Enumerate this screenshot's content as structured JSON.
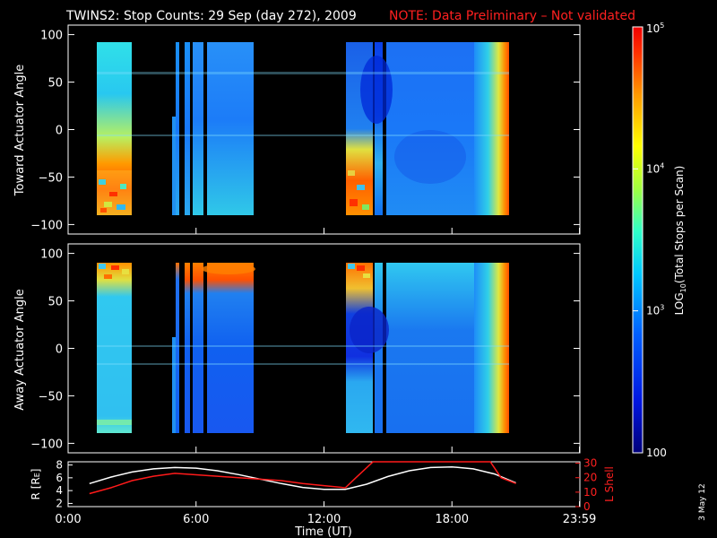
{
  "title": {
    "main": "TWINS2: Stop Counts: 29 Sep (day 272), 2009",
    "note": "NOTE: Data Preliminary – Not validated",
    "note_color": "#ff2020"
  },
  "datestamp": "3 May 12",
  "colorbar": {
    "label": "LOG",
    "label_sub": "10",
    "label_rest": "(Total Stops per Scan)",
    "ticks": [
      {
        "base": "10",
        "exp": "5",
        "value": 100000
      },
      {
        "base": "10",
        "exp": "4",
        "value": 10000
      },
      {
        "base": "10",
        "exp": "3",
        "value": 1000
      },
      {
        "base": "100",
        "exp": "",
        "value": 100
      }
    ],
    "range": [
      100,
      100000
    ]
  },
  "chart_data": [
    {
      "type": "heatmap",
      "name": "toward",
      "ylabel": "Toward Actuator Angle",
      "ylim": [
        -110,
        110
      ],
      "xlim": [
        0,
        24
      ],
      "yticks": [
        "100",
        "50",
        "0",
        "−50",
        "−100"
      ],
      "ytick_values": [
        100,
        50,
        0,
        -50,
        -100
      ],
      "angle_range": [
        -88,
        90
      ],
      "scan_blocks": [
        [
          1.2,
          2.6
        ],
        [
          4.9,
          5.3
        ],
        [
          5.5,
          6.0
        ],
        [
          6.1,
          8.8
        ],
        [
          13.0,
          21.0
        ]
      ],
      "note": "Log10 stop counts ~10^2.5-10^4; enhanced (red) below -30 deg near 1-2.6h and 13-14h"
    },
    {
      "type": "heatmap",
      "name": "away",
      "ylabel": "Away Actuator Angle",
      "ylim": [
        -110,
        110
      ],
      "xlim": [
        0,
        24
      ],
      "yticks": [
        "100",
        "50",
        "0",
        "−50",
        "−100"
      ],
      "ytick_values": [
        100,
        50,
        0,
        -50,
        -100
      ],
      "angle_range": [
        -88,
        90
      ],
      "scan_blocks": [
        [
          1.2,
          2.6
        ],
        [
          4.9,
          5.3
        ],
        [
          5.5,
          6.0
        ],
        [
          6.1,
          8.8
        ],
        [
          13.0,
          21.0
        ]
      ],
      "note": "Enhanced (red/orange) near +80 deg; low (blue) 30-60 deg"
    },
    {
      "type": "line",
      "name": "ephemeris",
      "ylabel_left": "R [R",
      "ylabel_left_sub": "E",
      "ylabel_left_end": "]",
      "ylabel_right": "L Shell",
      "xlabel": "Time (UT)",
      "xticks": [
        "0:00",
        "6:00",
        "12:00",
        "18:00",
        "23:59"
      ],
      "xtick_values": [
        0,
        6,
        12,
        18,
        23.98
      ],
      "left_yticks": [
        "8",
        "6",
        "4",
        "2"
      ],
      "left_ytick_values": [
        8,
        6,
        4,
        2
      ],
      "right_yticks": [
        "30",
        "20",
        "10",
        "0"
      ],
      "right_ytick_values": [
        30,
        20,
        10,
        0
      ],
      "left_ylim": [
        1.5,
        8.5
      ],
      "right_ylim": [
        0,
        31
      ],
      "xlim": [
        0,
        24
      ],
      "series": [
        {
          "name": "R",
          "axis": "left",
          "color": "#ffffff",
          "x": [
            1,
            2,
            3,
            4,
            5,
            6,
            7,
            8,
            9,
            10,
            11,
            12,
            13,
            14,
            15,
            16,
            17,
            18,
            19,
            20,
            21
          ],
          "y": [
            5.1,
            6.1,
            6.9,
            7.4,
            7.6,
            7.5,
            7.1,
            6.5,
            5.8,
            5.1,
            4.5,
            4.2,
            4.2,
            5.0,
            6.2,
            7.1,
            7.6,
            7.7,
            7.4,
            6.6,
            5.2
          ]
        },
        {
          "name": "L Shell",
          "axis": "right",
          "color": "#ff1a1a",
          "x": [
            1,
            2,
            3,
            4,
            5,
            6,
            7,
            8,
            9,
            10,
            11,
            12,
            13,
            13.5,
            14.3,
            19.8,
            20.3,
            21
          ],
          "y": [
            9,
            13,
            18,
            21,
            23,
            22,
            21,
            20,
            19,
            18,
            16,
            14.5,
            13,
            20,
            31,
            31,
            20,
            16
          ]
        }
      ]
    }
  ]
}
